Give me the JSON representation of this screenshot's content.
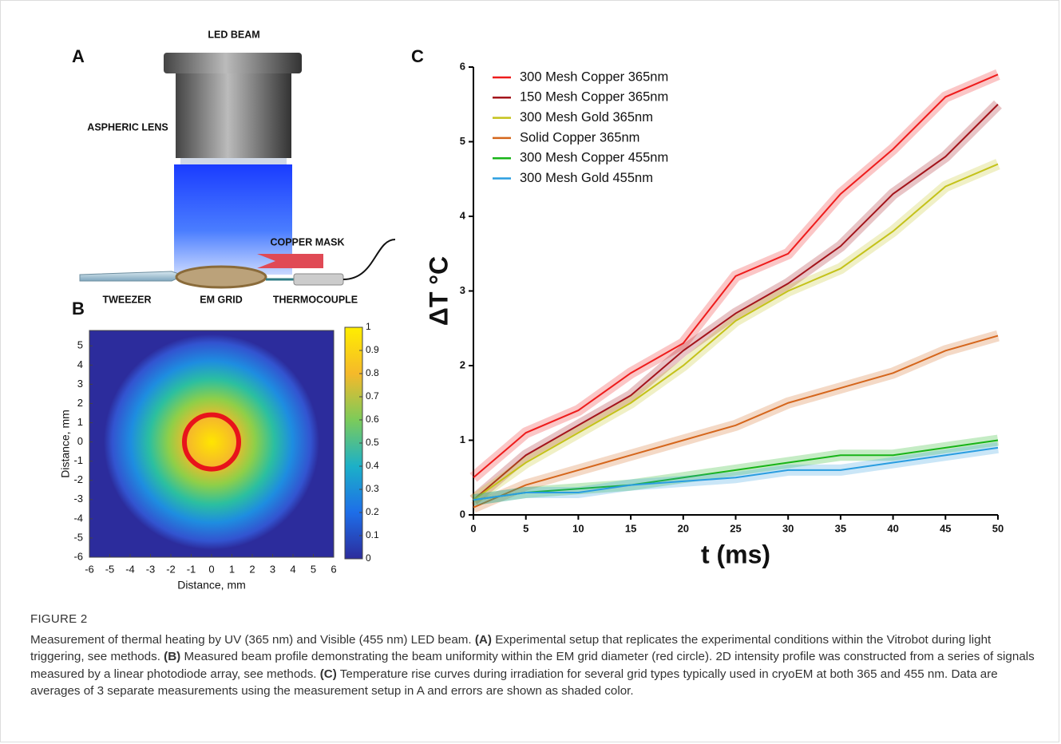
{
  "figure": {
    "panel_labels": [
      "A",
      "B",
      "C"
    ]
  },
  "diagram": {
    "labels": [
      "LED BEAM",
      "ASPHERIC LENS",
      "COPPER MASK",
      "TWEEZER",
      "EM GRID",
      "THERMOCOUPLE"
    ]
  },
  "chart_data": [
    {
      "type": "heatmap",
      "xlabel": "Distance, mm",
      "ylabel": "Distance, mm",
      "xlim": [
        -6,
        6
      ],
      "xticks": [
        -6,
        -5,
        -4,
        -3,
        -2,
        -1,
        0,
        1,
        2,
        3,
        4,
        5,
        6
      ],
      "ylim": [
        -6,
        5.8
      ],
      "yticks": [
        -6,
        -5,
        -4,
        -3,
        -2,
        -1,
        0,
        1,
        2,
        3,
        4,
        5
      ],
      "colorbar_lim": [
        0,
        1
      ],
      "colorbar_ticks": [
        0,
        0.1,
        0.2,
        0.3,
        0.4,
        0.5,
        0.6,
        0.7,
        0.8,
        0.9,
        1
      ]
    },
    {
      "type": "line",
      "xlabel": "t (ms)",
      "ylabel": "ΔT °C",
      "xlim": [
        0,
        50
      ],
      "xticks": [
        0,
        5,
        10,
        15,
        20,
        25,
        30,
        35,
        40,
        45,
        50
      ],
      "ylim": [
        0,
        6
      ],
      "yticks": [
        0,
        1,
        2,
        3,
        4,
        5,
        6
      ],
      "x": [
        0,
        5,
        10,
        15,
        20,
        25,
        30,
        35,
        40,
        45,
        50
      ],
      "series": [
        {
          "name": "300 Mesh Copper 365nm",
          "color": "#ee1c1c",
          "values": [
            0.5,
            1.1,
            1.4,
            1.9,
            2.3,
            3.2,
            3.5,
            4.3,
            4.9,
            5.6,
            5.9
          ]
        },
        {
          "name": "150 Mesh Copper 365nm",
          "color": "#a3141b",
          "values": [
            0.2,
            0.8,
            1.2,
            1.6,
            2.2,
            2.7,
            3.1,
            3.6,
            4.3,
            4.8,
            5.5
          ]
        },
        {
          "name": "300 Mesh Gold 365nm",
          "color": "#c4c21a",
          "values": [
            0.2,
            0.7,
            1.1,
            1.5,
            2.0,
            2.6,
            3.0,
            3.3,
            3.8,
            4.4,
            4.7
          ]
        },
        {
          "name": "Solid Copper 365nm",
          "color": "#d5661c",
          "values": [
            0.1,
            0.4,
            0.6,
            0.8,
            1.0,
            1.2,
            1.5,
            1.7,
            1.9,
            2.2,
            2.4
          ]
        },
        {
          "name": "300 Mesh Copper 455nm",
          "color": "#18b418",
          "values": [
            0.2,
            0.3,
            0.35,
            0.4,
            0.5,
            0.6,
            0.7,
            0.8,
            0.8,
            0.9,
            1.0
          ]
        },
        {
          "name": "300 Mesh Gold 455nm",
          "color": "#2a9de0",
          "values": [
            0.2,
            0.3,
            0.3,
            0.4,
            0.45,
            0.5,
            0.6,
            0.6,
            0.7,
            0.8,
            0.9
          ]
        }
      ]
    }
  ],
  "caption": {
    "label": "FIGURE 2",
    "parts": [
      {
        "text": "Measurement of thermal heating by UV (365 nm) and Visible (455 nm) LED beam. "
      },
      {
        "text": "(A)",
        "bold": true
      },
      {
        "text": " Experimental setup that replicates the experimental conditions within the Vitrobot during light triggering, see methods. "
      },
      {
        "text": "(B)",
        "bold": true
      },
      {
        "text": " Measured beam profile demonstrating the beam uniformity within the EM grid diameter (red circle). 2D intensity profile was constructed from a series of signals measured by a linear photodiode array, see methods. "
      },
      {
        "text": "(C)",
        "bold": true
      },
      {
        "text": " Temperature rise curves during irradiation for several grid types typically used in cryoEM at both 365 and 455 nm. Data are averages of 3 separate measurements using the measurement setup in A and errors are shown as shaded color."
      }
    ]
  }
}
